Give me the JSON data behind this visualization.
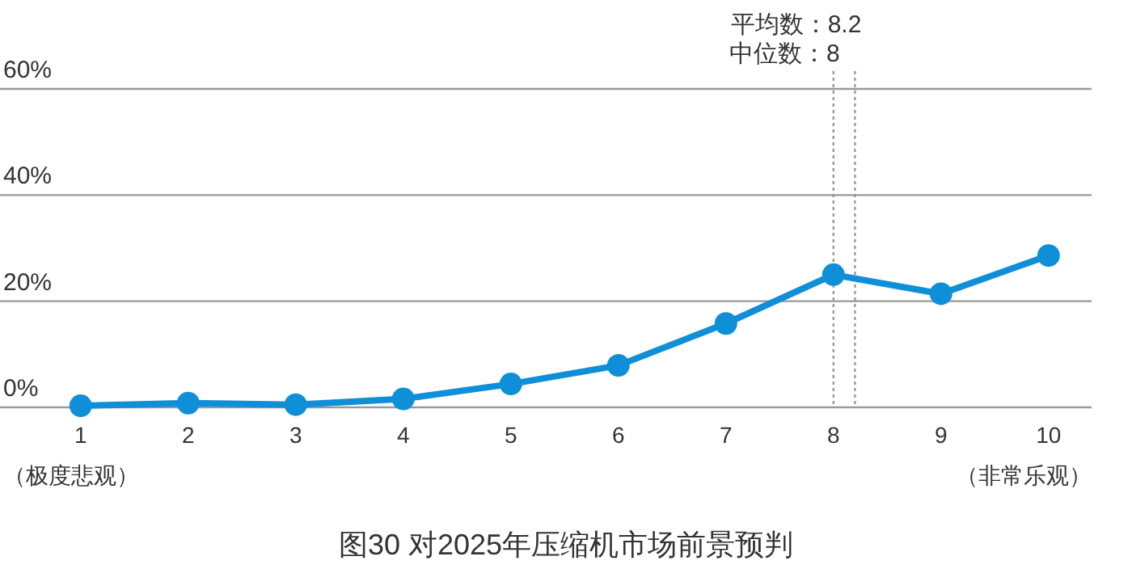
{
  "chart_data": {
    "type": "line",
    "title": "图30 对2025年压缩机市场前景预判",
    "x": [
      1,
      2,
      3,
      4,
      5,
      6,
      7,
      8,
      9,
      10
    ],
    "series": [
      {
        "color": "#0f8fd8",
        "values": [
          0.3,
          0.8,
          0.5,
          1.6,
          4.4,
          7.9,
          15.8,
          25,
          21.4,
          28.6
        ]
      }
    ],
    "xlim": [
      0.25,
      10.4
    ],
    "xticks": [
      1,
      2,
      3,
      4,
      5,
      6,
      7,
      8,
      9,
      10
    ],
    "ylim": [
      0,
      60
    ],
    "yticks": [
      {
        "value": 0,
        "label": "0%"
      },
      {
        "value": 20,
        "label": "20%"
      },
      {
        "value": 40,
        "label": "40%"
      },
      {
        "value": 60,
        "label": "60%"
      }
    ],
    "grid": "y",
    "marker": "circle",
    "line_style": "solid",
    "ref_lines": [
      {
        "axis": "x",
        "value": 8,
        "label": "中位数：8",
        "color": "#999999",
        "line_style": "dotted"
      },
      {
        "axis": "x",
        "value": 8.2,
        "label": "平均数：8.2",
        "color": "#999999",
        "line_style": "dotted"
      }
    ],
    "annotations": [
      "（极度悲观）",
      "（非常乐观）"
    ]
  }
}
